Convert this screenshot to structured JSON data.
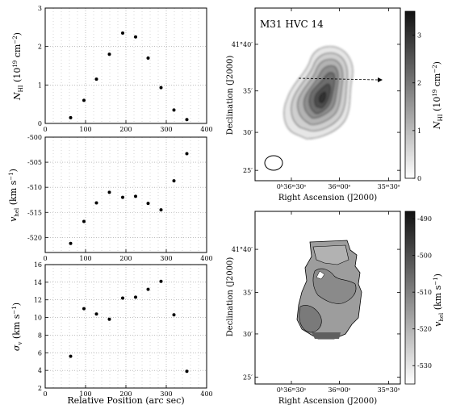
{
  "chart_data": [
    {
      "type": "scatter",
      "panel": "column-density",
      "ylabel_main": "N",
      "ylabel_sub": "HI",
      "ylabel_rest": " (10",
      "ylabel_exp": "19",
      "ylabel_unit": " cm",
      "ylabel_unit_exp": "−2",
      "ylabel_close": ")",
      "xlim": [
        0,
        400
      ],
      "ylim": [
        0,
        3
      ],
      "xticks": [
        "0",
        "100",
        "200",
        "300",
        "400"
      ],
      "yticks": [
        "0",
        "1",
        "2",
        "3"
      ],
      "x": [
        63,
        96,
        127,
        159,
        192,
        224,
        255,
        287,
        319,
        351
      ],
      "y": [
        0.15,
        0.6,
        1.15,
        1.8,
        2.35,
        2.25,
        1.7,
        0.93,
        0.35,
        0.1
      ],
      "grid": true
    },
    {
      "type": "scatter",
      "panel": "velocity",
      "ylabel_main": "v",
      "ylabel_sub": "hel",
      "ylabel_rest": " (km s",
      "ylabel_exp": "−1",
      "ylabel_close": ")",
      "xlim": [
        0,
        400
      ],
      "ylim": [
        -523,
        -500
      ],
      "xticks": [
        "0",
        "100",
        "200",
        "300",
        "400"
      ],
      "yticks": [
        "-500",
        "-505",
        "-510",
        "-515",
        "-520"
      ],
      "x": [
        63,
        96,
        127,
        159,
        192,
        224,
        255,
        287,
        319,
        351
      ],
      "y": [
        -521.2,
        -516.8,
        -513.1,
        -511.0,
        -512.0,
        -511.8,
        -513.2,
        -514.5,
        -508.7,
        -503.3
      ],
      "grid": true
    },
    {
      "type": "scatter",
      "panel": "dispersion",
      "ylabel_main": "σ",
      "ylabel_sub": "v",
      "ylabel_rest": " (km s",
      "ylabel_exp": "−1",
      "ylabel_close": ")",
      "xlabel": "Relative Position (arc sec)",
      "xlim": [
        0,
        400
      ],
      "ylim": [
        2,
        16
      ],
      "xticks": [
        "0",
        "100",
        "200",
        "300",
        "400"
      ],
      "yticks": [
        "2",
        "4",
        "6",
        "8",
        "10",
        "12",
        "14",
        "16"
      ],
      "x": [
        63,
        96,
        127,
        159,
        192,
        224,
        255,
        287,
        319,
        351
      ],
      "y": [
        5.6,
        11.0,
        10.4,
        9.8,
        12.2,
        12.3,
        13.2,
        14.1,
        10.3,
        3.9
      ],
      "grid": true
    },
    {
      "type": "heatmap",
      "panel": "column-density-map",
      "title": "M31 HVC 14",
      "xlabel": "Right Ascension (J2000)",
      "ylabel": "Declination (J2000)",
      "xticks": [
        "0ʰ36ᵐ30ˢ",
        "36ᵐ00ˢ",
        "35ᵐ30ˢ"
      ],
      "yticks": [
        "41°40′",
        "35′",
        "30′",
        "25′"
      ],
      "colorbar_label_main": "N",
      "colorbar_label_sub": "HI",
      "colorbar_label_rest": " (10",
      "colorbar_label_exp": "19",
      "colorbar_label_unit": " cm",
      "colorbar_label_unit_exp": "−2",
      "colorbar_label_close": ")",
      "colorbar_ticks": [
        "0",
        "1",
        "2",
        "3"
      ],
      "colorbar_range": [
        0,
        3.5
      ],
      "contour_levels": 7,
      "beam_shown": true,
      "slice_arrow": true
    },
    {
      "type": "heatmap",
      "panel": "velocity-map",
      "xlabel": "Right Ascension (J2000)",
      "ylabel": "Declination (J2000)",
      "xticks": [
        "0ʰ36ᵐ30ˢ",
        "36ᵐ00ˢ",
        "35ᵐ30ˢ"
      ],
      "yticks": [
        "41°40′",
        "35′",
        "30′",
        "25′"
      ],
      "colorbar_label_main": "v",
      "colorbar_label_sub": "hel",
      "colorbar_label_rest": " (km s",
      "colorbar_label_exp": "−1",
      "colorbar_label_close": ")",
      "colorbar_ticks": [
        "-490",
        "-500",
        "-510",
        "-520",
        "-530"
      ],
      "colorbar_range": [
        -535,
        -488
      ]
    }
  ],
  "colors": {
    "ink": "#000000",
    "grid": "#9a9a9a",
    "map_background": "#ffffff",
    "colorbar_top": "#111111",
    "colorbar_bottom": "#ffffff"
  }
}
